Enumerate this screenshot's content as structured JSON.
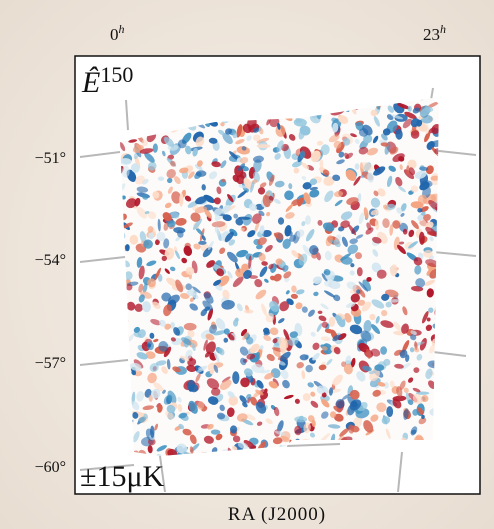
{
  "map": {
    "title": {
      "symbol": "Ê",
      "superscript": "150"
    },
    "ra_ticks": [
      {
        "hour": "0",
        "unit": "h"
      },
      {
        "hour": "23",
        "unit": "h"
      }
    ],
    "dec_ticks": [
      "−51°",
      "−54°",
      "−57°",
      "−60°"
    ],
    "scale_label": "±15μK",
    "x_axis_label": "RA (J2000)"
  }
}
